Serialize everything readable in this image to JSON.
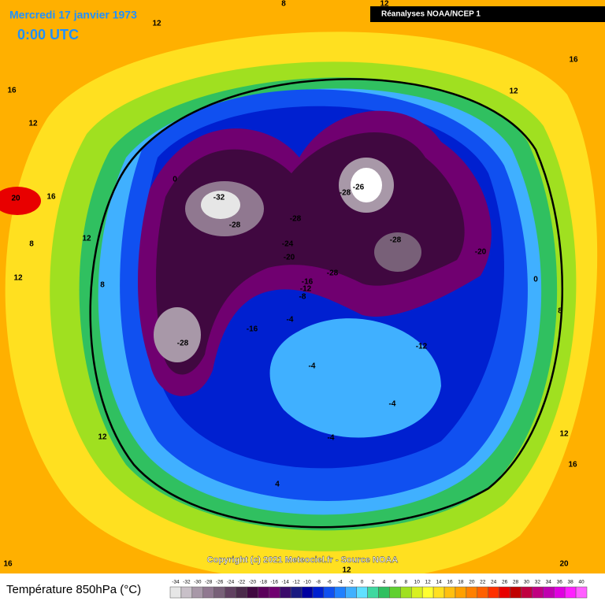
{
  "header": {
    "title": "Mercredi 17 janvier 1973",
    "time": "0:00 UTC",
    "source": "Réanalyses NOAA/NCEP 1"
  },
  "map": {
    "contour_labels": [
      "12",
      "8",
      "16",
      "12",
      "16",
      "12",
      "20",
      "16",
      "0",
      "-32",
      "-28",
      "-28",
      "-26",
      "-28",
      "-28",
      "-24",
      "-20",
      "-20",
      "-28",
      "-16",
      "-12",
      "-8",
      "-4",
      "-16",
      "-28",
      "-12",
      "-4",
      "-4",
      "-4",
      "4",
      "12",
      "0",
      "8",
      "12",
      "16",
      "20",
      "16",
      "12",
      "12",
      "12",
      "8",
      "8",
      "12"
    ]
  },
  "copyright": "Copyright (c) 2021 Meteociel.fr - Source NOAA",
  "legend": {
    "title": "Température 850hPa (°C)",
    "ticks": [
      -34,
      -32,
      -30,
      -28,
      -26,
      -24,
      -22,
      -20,
      -18,
      -16,
      -14,
      -12,
      -10,
      -8,
      -6,
      -4,
      -2,
      0,
      2,
      4,
      6,
      8,
      10,
      12,
      14,
      16,
      18,
      20,
      22,
      24,
      26,
      28,
      30,
      32,
      34,
      36,
      38,
      40
    ],
    "colors": [
      "#e6e6e6",
      "#c8c0c8",
      "#a898a8",
      "#907890",
      "#786078",
      "#604060",
      "#4a2a4a",
      "#400840",
      "#5a005a",
      "#700070",
      "#3a0a6a",
      "#1a1a80",
      "#0000a0",
      "#0020d0",
      "#1050f0",
      "#2080ff",
      "#40b0ff",
      "#60e0ff",
      "#40d8a0",
      "#30c060",
      "#60d030",
      "#a0e020",
      "#d8f020",
      "#ffff30",
      "#ffe020",
      "#ffc010",
      "#ffa000",
      "#ff8000",
      "#ff6000",
      "#ff3000",
      "#e80000",
      "#c00000",
      "#c00040",
      "#c00080",
      "#c000b0",
      "#e000e0",
      "#ff20ff",
      "#ff60ff"
    ]
  }
}
